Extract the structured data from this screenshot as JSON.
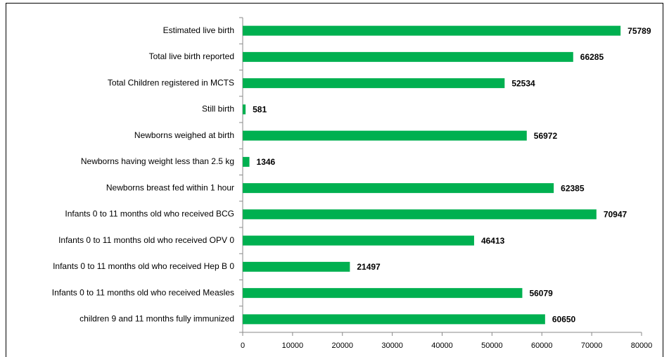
{
  "chart_data": {
    "type": "bar",
    "orientation": "horizontal",
    "categories": [
      "Estimated live birth",
      "Total live birth reported",
      "Total Children registered in MCTS",
      "Still birth",
      "Newborns weighed at birth",
      "Newborns having weight less than 2.5 kg",
      "Newborns breast fed within 1 hour",
      "Infants 0 to 11 months old who received BCG",
      "Infants 0 to 11 months old who received OPV 0",
      "Infants 0 to 11 months old who received Hep B 0",
      "Infants 0 to 11 months old who received Measles",
      "children 9 and 11 months fully immunized"
    ],
    "values": [
      75789,
      66285,
      52534,
      581,
      56972,
      1346,
      62385,
      70947,
      46413,
      21497,
      56079,
      60650
    ],
    "color": "#00b050",
    "xlim": [
      0,
      80000
    ],
    "xticks": [
      0,
      10000,
      20000,
      30000,
      40000,
      50000,
      60000,
      70000,
      80000
    ]
  }
}
